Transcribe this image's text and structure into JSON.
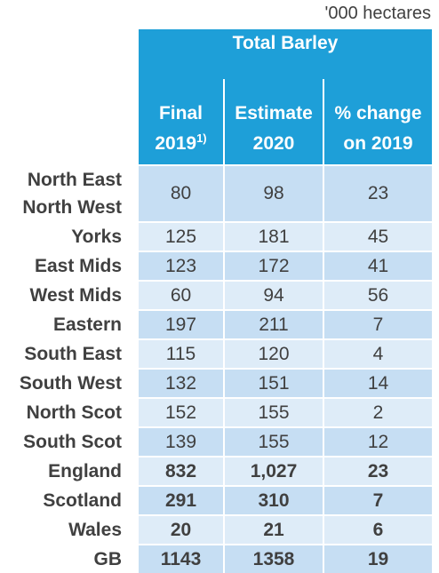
{
  "unit_label": "'000 hectares",
  "title": "Total Barley",
  "columns": [
    {
      "line1": "Final",
      "line2": "2019",
      "sup": "1)"
    },
    {
      "line1": "Estimate",
      "line2": "2020",
      "sup": ""
    },
    {
      "line1": "% change",
      "line2": "on 2019",
      "sup": ""
    }
  ],
  "rows": [
    {
      "label1": "North East",
      "label2": "North West",
      "final": "80",
      "estimate": "98",
      "change": "23"
    },
    {
      "label1": "Yorks",
      "final": "125",
      "estimate": "181",
      "change": "45"
    },
    {
      "label1": "East Mids",
      "final": "123",
      "estimate": "172",
      "change": "41"
    },
    {
      "label1": "West Mids",
      "final": "60",
      "estimate": "94",
      "change": "56"
    },
    {
      "label1": "Eastern",
      "final": "197",
      "estimate": "211",
      "change": "7"
    },
    {
      "label1": "South East",
      "final": "115",
      "estimate": "120",
      "change": "4"
    },
    {
      "label1": "South West",
      "final": "132",
      "estimate": "151",
      "change": "14"
    },
    {
      "label1": "North Scot",
      "final": "152",
      "estimate": "155",
      "change": "2"
    },
    {
      "label1": "South Scot",
      "final": "139",
      "estimate": "155",
      "change": "12"
    },
    {
      "label1": "England",
      "final": "832",
      "estimate": "1,027",
      "change": "23"
    },
    {
      "label1": "Scotland",
      "final": "291",
      "estimate": "310",
      "change": "7"
    },
    {
      "label1": "Wales",
      "final": "20",
      "estimate": "21",
      "change": "6"
    },
    {
      "label1": "GB",
      "final": "1143",
      "estimate": "1358",
      "change": "19"
    }
  ],
  "colors": {
    "header": "#1e9fd8",
    "row_dark": "#c6def3",
    "row_light": "#deecf8"
  }
}
